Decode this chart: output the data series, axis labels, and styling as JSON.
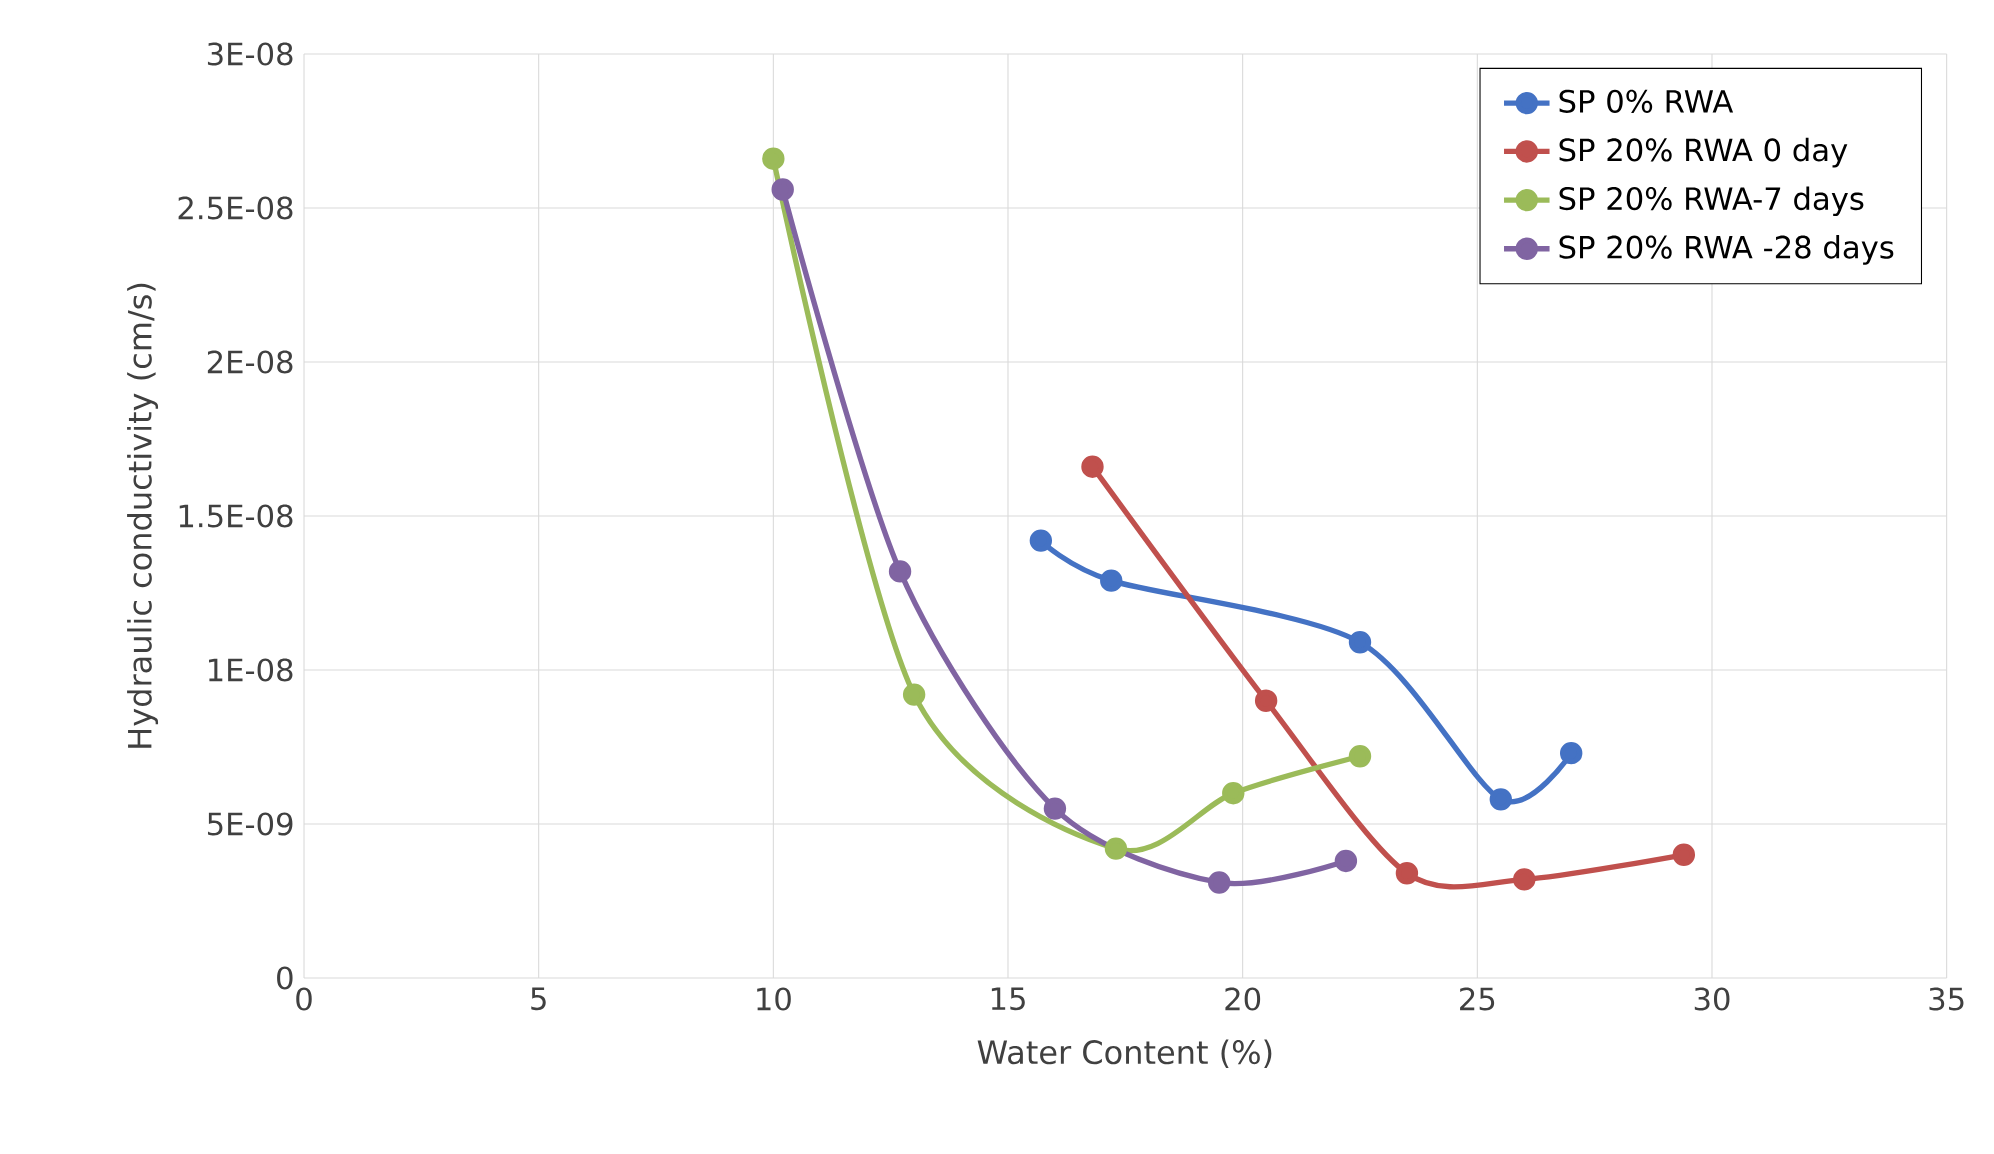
{
  "chart_data": {
    "type": "line",
    "xlabel": "Water Content (%)",
    "ylabel": "Hydraulic conductivity (cm/s)",
    "xlim": [
      0,
      35
    ],
    "xticks": [
      0,
      5,
      10,
      15,
      20,
      25,
      30,
      35
    ],
    "ylim": [
      0,
      3e-08
    ],
    "yticks": [
      0,
      {
        "value": 5e-09,
        "label": "5E-09"
      },
      {
        "value": 1e-08,
        "label": "1E-08"
      },
      {
        "value": 1.5e-08,
        "label": "1.5E-08"
      },
      {
        "value": 2e-08,
        "label": "2E-08"
      },
      {
        "value": 2.5e-08,
        "label": "2.5E-08"
      },
      {
        "value": 3e-08,
        "label": "3E-08"
      }
    ],
    "grid": true,
    "legend": "top right",
    "marker": "circle",
    "line_style": "solid",
    "series": [
      {
        "name": "SP 0% RWA",
        "color": "#4472c4",
        "x": [
          15.7,
          17.2,
          22.5,
          25.5,
          27.0
        ],
        "values": [
          1.42e-08,
          1.29e-08,
          1.09e-08,
          5.8e-09,
          7.3e-09
        ]
      },
      {
        "name": "SP 20% RWA 0 day",
        "color": "#c0504d",
        "x": [
          16.8,
          20.5,
          23.5,
          26.0,
          29.4
        ],
        "values": [
          1.66e-08,
          9e-09,
          3.4e-09,
          3.2e-09,
          4e-09
        ]
      },
      {
        "name": "SP 20% RWA-7 days",
        "color": "#9bbb59",
        "x": [
          10.0,
          13.0,
          17.3,
          19.8,
          22.5
        ],
        "values": [
          2.66e-08,
          9.2e-09,
          4.2e-09,
          6e-09,
          7.2e-09
        ]
      },
      {
        "name": "SP 20% RWA -28 days",
        "color": "#8064a2",
        "x": [
          10.2,
          12.7,
          16.0,
          19.5,
          22.2
        ],
        "values": [
          2.56e-08,
          1.32e-08,
          5.5e-09,
          3.1e-09,
          3.8e-09
        ]
      }
    ]
  }
}
